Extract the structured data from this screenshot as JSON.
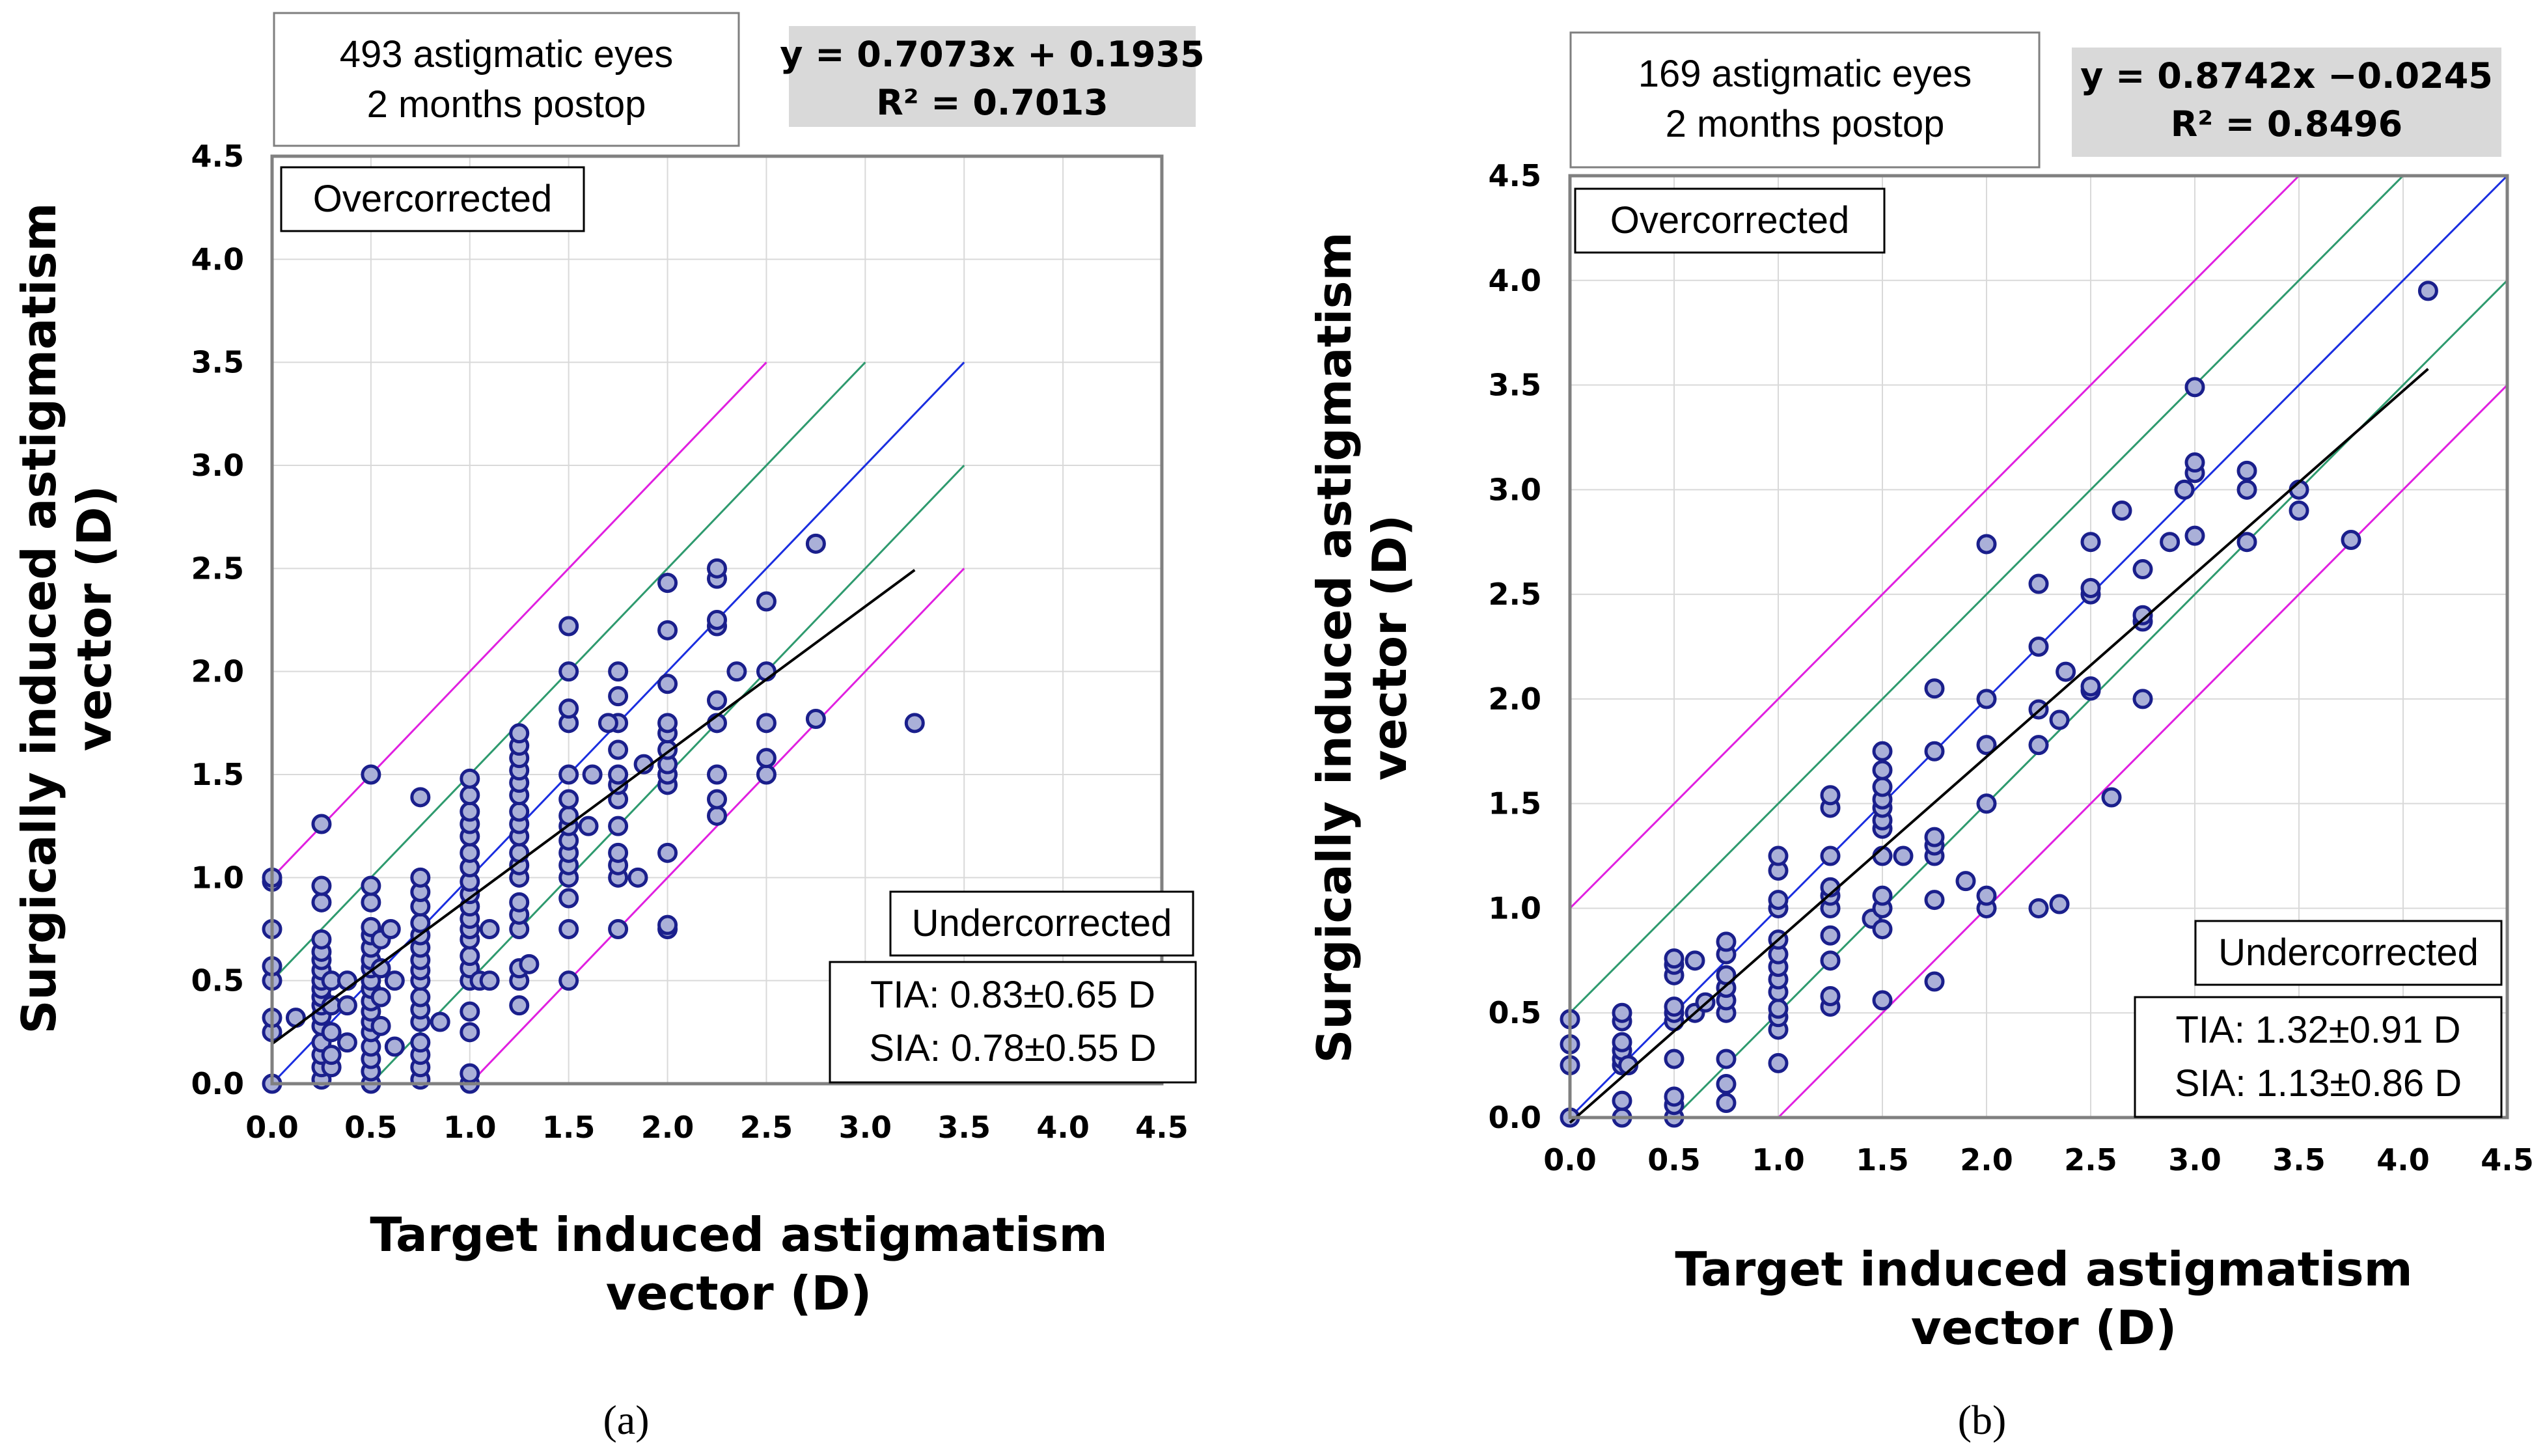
{
  "chart_data": [
    {
      "type": "scatter",
      "panel_label": "(a)",
      "info_lines": [
        "493 astigmatic eyes",
        "2 months postop"
      ],
      "equation": "y = 0.7073x + 0.1935",
      "r_squared_text": "R² = 0.7013",
      "overcorrected_label": "Overcorrected",
      "undercorrected_label": "Undercorrected",
      "stats_lines": [
        "TIA: 0.83±0.65 D",
        "SIA: 0.78±0.55 D"
      ],
      "xlabel": [
        "Target induced astigmatism",
        "vector (D)"
      ],
      "ylabel": [
        "Surgically induced astigmatism",
        "vector (D)"
      ],
      "xlim": [
        0,
        4.5
      ],
      "ylim": [
        0,
        4.5
      ],
      "x_ticks": [
        "0.0",
        "0.5",
        "1.0",
        "1.5",
        "2.0",
        "2.5",
        "3.0",
        "3.5",
        "4.0",
        "4.5"
      ],
      "y_ticks": [
        "0.0",
        "0.5",
        "1.0",
        "1.5",
        "2.0",
        "2.5",
        "3.0",
        "3.5",
        "4.0",
        "4.5"
      ],
      "grid": true,
      "trendline": {
        "slope": 0.7073,
        "intercept": 0.1935,
        "x_range": [
          0,
          3.25
        ],
        "color": "#000000"
      },
      "reference_lines": [
        {
          "offset": 1.0,
          "x_range": [
            0,
            2.5
          ],
          "color": "#e020e0"
        },
        {
          "offset": 0.5,
          "x_range": [
            0,
            3.0
          ],
          "color": "#2e9a6e"
        },
        {
          "offset": 0.0,
          "x_range": [
            0,
            3.5
          ],
          "color": "#1a2ee0"
        },
        {
          "offset": -0.5,
          "x_range": [
            0.5,
            3.5
          ],
          "color": "#2e9a6e"
        },
        {
          "offset": -1.0,
          "x_range": [
            1.0,
            3.5
          ],
          "color": "#e020e0"
        }
      ],
      "points": [
        [
          0,
          0
        ],
        [
          0,
          0.25
        ],
        [
          0,
          0.32
        ],
        [
          0,
          0.5
        ],
        [
          0,
          0.57
        ],
        [
          0,
          0.75
        ],
        [
          0,
          0.98
        ],
        [
          0,
          1.0
        ],
        [
          0.12,
          0.32
        ],
        [
          0.25,
          0.02
        ],
        [
          0.25,
          0.08
        ],
        [
          0.25,
          0.14
        ],
        [
          0.25,
          0.2
        ],
        [
          0.25,
          0.28
        ],
        [
          0.25,
          0.33
        ],
        [
          0.25,
          0.38
        ],
        [
          0.25,
          0.42
        ],
        [
          0.25,
          0.46
        ],
        [
          0.25,
          0.5
        ],
        [
          0.25,
          0.55
        ],
        [
          0.25,
          0.6
        ],
        [
          0.25,
          0.64
        ],
        [
          0.25,
          0.7
        ],
        [
          0.25,
          0.88
        ],
        [
          0.25,
          0.96
        ],
        [
          0.25,
          1.26
        ],
        [
          0.3,
          0.08
        ],
        [
          0.3,
          0.14
        ],
        [
          0.3,
          0.25
        ],
        [
          0.3,
          0.38
        ],
        [
          0.3,
          0.5
        ],
        [
          0.38,
          0.2
        ],
        [
          0.38,
          0.38
        ],
        [
          0.38,
          0.5
        ],
        [
          0.5,
          0
        ],
        [
          0.5,
          0.06
        ],
        [
          0.5,
          0.12
        ],
        [
          0.5,
          0.18
        ],
        [
          0.5,
          0.25
        ],
        [
          0.5,
          0.3
        ],
        [
          0.5,
          0.35
        ],
        [
          0.5,
          0.4
        ],
        [
          0.5,
          0.46
        ],
        [
          0.5,
          0.5
        ],
        [
          0.5,
          0.56
        ],
        [
          0.5,
          0.6
        ],
        [
          0.5,
          0.66
        ],
        [
          0.5,
          0.72
        ],
        [
          0.5,
          0.76
        ],
        [
          0.5,
          0.88
        ],
        [
          0.5,
          0.96
        ],
        [
          0.5,
          1.5
        ],
        [
          0.55,
          0.28
        ],
        [
          0.55,
          0.42
        ],
        [
          0.55,
          0.56
        ],
        [
          0.55,
          0.7
        ],
        [
          0.6,
          0.75
        ],
        [
          0.62,
          0.5
        ],
        [
          0.62,
          0.18
        ],
        [
          0.75,
          0.02
        ],
        [
          0.75,
          0.08
        ],
        [
          0.75,
          0.14
        ],
        [
          0.75,
          0.2
        ],
        [
          0.75,
          0.3
        ],
        [
          0.75,
          0.36
        ],
        [
          0.75,
          0.42
        ],
        [
          0.75,
          0.5
        ],
        [
          0.75,
          0.55
        ],
        [
          0.75,
          0.6
        ],
        [
          0.75,
          0.66
        ],
        [
          0.75,
          0.72
        ],
        [
          0.75,
          0.78
        ],
        [
          0.75,
          0.86
        ],
        [
          0.75,
          0.93
        ],
        [
          0.75,
          1.0
        ],
        [
          0.75,
          1.39
        ],
        [
          0.85,
          0.3
        ],
        [
          1.0,
          0
        ],
        [
          1.0,
          0.05
        ],
        [
          1.0,
          0.25
        ],
        [
          1.0,
          0.35
        ],
        [
          1.0,
          0.5
        ],
        [
          1.0,
          0.56
        ],
        [
          1.0,
          0.62
        ],
        [
          1.0,
          0.7
        ],
        [
          1.0,
          0.75
        ],
        [
          1.0,
          0.8
        ],
        [
          1.0,
          0.86
        ],
        [
          1.0,
          0.92
        ],
        [
          1.0,
          0.98
        ],
        [
          1.0,
          1.05
        ],
        [
          1.0,
          1.12
        ],
        [
          1.0,
          1.2
        ],
        [
          1.0,
          1.26
        ],
        [
          1.0,
          1.32
        ],
        [
          1.0,
          1.4
        ],
        [
          1.0,
          1.48
        ],
        [
          1.05,
          0.5
        ],
        [
          1.1,
          0.5
        ],
        [
          1.1,
          0.75
        ],
        [
          1.25,
          0.38
        ],
        [
          1.25,
          0.5
        ],
        [
          1.25,
          0.56
        ],
        [
          1.25,
          0.75
        ],
        [
          1.25,
          0.82
        ],
        [
          1.25,
          0.88
        ],
        [
          1.25,
          1.0
        ],
        [
          1.25,
          1.06
        ],
        [
          1.25,
          1.12
        ],
        [
          1.25,
          1.2
        ],
        [
          1.25,
          1.26
        ],
        [
          1.25,
          1.32
        ],
        [
          1.25,
          1.4
        ],
        [
          1.25,
          1.46
        ],
        [
          1.25,
          1.52
        ],
        [
          1.25,
          1.58
        ],
        [
          1.25,
          1.64
        ],
        [
          1.25,
          1.7
        ],
        [
          1.3,
          0.58
        ],
        [
          1.5,
          0.5
        ],
        [
          1.5,
          0.75
        ],
        [
          1.5,
          0.9
        ],
        [
          1.5,
          1.0
        ],
        [
          1.5,
          1.06
        ],
        [
          1.5,
          1.12
        ],
        [
          1.5,
          1.18
        ],
        [
          1.5,
          1.25
        ],
        [
          1.5,
          1.3
        ],
        [
          1.5,
          1.38
        ],
        [
          1.5,
          1.5
        ],
        [
          1.5,
          1.75
        ],
        [
          1.5,
          1.82
        ],
        [
          1.5,
          2.0
        ],
        [
          1.5,
          2.22
        ],
        [
          1.6,
          1.25
        ],
        [
          1.62,
          1.5
        ],
        [
          1.75,
          0.75
        ],
        [
          1.75,
          1.0
        ],
        [
          1.75,
          1.06
        ],
        [
          1.75,
          1.12
        ],
        [
          1.75,
          1.25
        ],
        [
          1.75,
          1.38
        ],
        [
          1.75,
          1.45
        ],
        [
          1.75,
          1.5
        ],
        [
          1.75,
          1.62
        ],
        [
          1.75,
          1.75
        ],
        [
          1.75,
          1.88
        ],
        [
          1.75,
          2.0
        ],
        [
          1.7,
          1.75
        ],
        [
          1.85,
          1.0
        ],
        [
          1.88,
          1.55
        ],
        [
          2.0,
          0.75
        ],
        [
          2.0,
          0.77
        ],
        [
          2.0,
          1.12
        ],
        [
          2.0,
          1.45
        ],
        [
          2.0,
          1.5
        ],
        [
          2.0,
          1.55
        ],
        [
          2.0,
          1.62
        ],
        [
          2.0,
          1.7
        ],
        [
          2.0,
          1.75
        ],
        [
          2.0,
          1.94
        ],
        [
          2.0,
          2.2
        ],
        [
          2.0,
          2.43
        ],
        [
          2.25,
          1.3
        ],
        [
          2.25,
          1.38
        ],
        [
          2.25,
          1.5
        ],
        [
          2.25,
          1.75
        ],
        [
          2.25,
          1.86
        ],
        [
          2.25,
          2.22
        ],
        [
          2.25,
          2.25
        ],
        [
          2.25,
          2.45
        ],
        [
          2.25,
          2.5
        ],
        [
          2.35,
          2.0
        ],
        [
          2.5,
          1.5
        ],
        [
          2.5,
          1.58
        ],
        [
          2.5,
          1.75
        ],
        [
          2.5,
          2.0
        ],
        [
          2.5,
          2.34
        ],
        [
          2.75,
          1.77
        ],
        [
          2.75,
          2.62
        ],
        [
          3.25,
          1.75
        ]
      ]
    },
    {
      "type": "scatter",
      "panel_label": "(b)",
      "info_lines": [
        "169 astigmatic eyes",
        "2 months postop"
      ],
      "equation": "y = 0.8742x −0.0245",
      "r_squared_text": "R² = 0.8496",
      "overcorrected_label": "Overcorrected",
      "undercorrected_label": "Undercorrected",
      "stats_lines": [
        "TIA: 1.32±0.91 D",
        "SIA: 1.13±0.86 D"
      ],
      "xlabel": [
        "Target induced astigmatism",
        "vector (D)"
      ],
      "ylabel": [
        "Surgically induced astigmatism",
        "vector (D)"
      ],
      "xlim": [
        0,
        4.5
      ],
      "ylim": [
        0,
        4.5
      ],
      "x_ticks": [
        "0.0",
        "0.5",
        "1.0",
        "1.5",
        "2.0",
        "2.5",
        "3.0",
        "3.5",
        "4.0",
        "4.5"
      ],
      "y_ticks": [
        "0.0",
        "0.5",
        "1.0",
        "1.5",
        "2.0",
        "2.5",
        "3.0",
        "3.5",
        "4.0",
        "4.5"
      ],
      "grid": true,
      "trendline": {
        "slope": 0.8742,
        "intercept": -0.0245,
        "x_range": [
          0,
          4.12
        ],
        "color": "#000000"
      },
      "reference_lines": [
        {
          "offset": 1.0,
          "x_range": [
            0,
            3.5
          ],
          "color": "#e020e0"
        },
        {
          "offset": 0.5,
          "x_range": [
            0,
            4.0
          ],
          "color": "#2e9a6e"
        },
        {
          "offset": 0.0,
          "x_range": [
            0,
            4.5
          ],
          "color": "#1a2ee0"
        },
        {
          "offset": -0.5,
          "x_range": [
            0.5,
            4.5
          ],
          "color": "#2e9a6e"
        },
        {
          "offset": -1.0,
          "x_range": [
            1.0,
            4.5
          ],
          "color": "#e020e0"
        }
      ],
      "points": [
        [
          0,
          0
        ],
        [
          0,
          0.25
        ],
        [
          0,
          0.35
        ],
        [
          0,
          0.47
        ],
        [
          0.25,
          0
        ],
        [
          0.25,
          0.08
        ],
        [
          0.25,
          0.25
        ],
        [
          0.25,
          0.28
        ],
        [
          0.25,
          0.32
        ],
        [
          0.25,
          0.36
        ],
        [
          0.25,
          0.46
        ],
        [
          0.25,
          0.5
        ],
        [
          0.28,
          0.25
        ],
        [
          0.5,
          0
        ],
        [
          0.5,
          0.06
        ],
        [
          0.5,
          0.1
        ],
        [
          0.5,
          0.28
        ],
        [
          0.5,
          0.46
        ],
        [
          0.5,
          0.5
        ],
        [
          0.5,
          0.53
        ],
        [
          0.5,
          0.68
        ],
        [
          0.5,
          0.73
        ],
        [
          0.5,
          0.76
        ],
        [
          0.6,
          0.5
        ],
        [
          0.6,
          0.75
        ],
        [
          0.65,
          0.55
        ],
        [
          0.75,
          0.07
        ],
        [
          0.75,
          0.16
        ],
        [
          0.75,
          0.28
        ],
        [
          0.75,
          0.5
        ],
        [
          0.75,
          0.56
        ],
        [
          0.75,
          0.62
        ],
        [
          0.75,
          0.68
        ],
        [
          0.75,
          0.78
        ],
        [
          0.75,
          0.84
        ],
        [
          1.0,
          0.26
        ],
        [
          1.0,
          0.42
        ],
        [
          1.0,
          0.48
        ],
        [
          1.0,
          0.52
        ],
        [
          1.0,
          0.6
        ],
        [
          1.0,
          0.66
        ],
        [
          1.0,
          0.72
        ],
        [
          1.0,
          0.78
        ],
        [
          1.0,
          0.85
        ],
        [
          1.0,
          1.0
        ],
        [
          1.0,
          1.04
        ],
        [
          1.0,
          1.18
        ],
        [
          1.0,
          1.25
        ],
        [
          1.25,
          0.53
        ],
        [
          1.25,
          0.58
        ],
        [
          1.25,
          0.75
        ],
        [
          1.25,
          0.87
        ],
        [
          1.25,
          1.0
        ],
        [
          1.25,
          1.06
        ],
        [
          1.25,
          1.1
        ],
        [
          1.25,
          1.25
        ],
        [
          1.25,
          1.48
        ],
        [
          1.25,
          1.54
        ],
        [
          1.45,
          0.95
        ],
        [
          1.5,
          0.56
        ],
        [
          1.5,
          0.9
        ],
        [
          1.5,
          1.0
        ],
        [
          1.5,
          1.06
        ],
        [
          1.5,
          1.25
        ],
        [
          1.5,
          1.38
        ],
        [
          1.5,
          1.42
        ],
        [
          1.5,
          1.48
        ],
        [
          1.5,
          1.52
        ],
        [
          1.5,
          1.58
        ],
        [
          1.5,
          1.66
        ],
        [
          1.5,
          1.75
        ],
        [
          1.6,
          1.25
        ],
        [
          1.75,
          0.65
        ],
        [
          1.75,
          1.04
        ],
        [
          1.75,
          1.25
        ],
        [
          1.75,
          1.3
        ],
        [
          1.75,
          1.34
        ],
        [
          1.75,
          1.75
        ],
        [
          1.75,
          2.05
        ],
        [
          1.9,
          1.13
        ],
        [
          2.0,
          1.0
        ],
        [
          2.0,
          1.06
        ],
        [
          2.0,
          1.5
        ],
        [
          2.0,
          1.78
        ],
        [
          2.0,
          2.0
        ],
        [
          2.0,
          2.74
        ],
        [
          2.25,
          1.0
        ],
        [
          2.25,
          1.78
        ],
        [
          2.25,
          1.95
        ],
        [
          2.25,
          2.25
        ],
        [
          2.25,
          2.55
        ],
        [
          2.35,
          1.02
        ],
        [
          2.35,
          1.9
        ],
        [
          2.38,
          2.13
        ],
        [
          2.5,
          2.04
        ],
        [
          2.5,
          2.06
        ],
        [
          2.5,
          2.5
        ],
        [
          2.5,
          2.53
        ],
        [
          2.5,
          2.75
        ],
        [
          2.6,
          1.53
        ],
        [
          2.65,
          2.9
        ],
        [
          2.75,
          2.0
        ],
        [
          2.75,
          2.37
        ],
        [
          2.75,
          2.4
        ],
        [
          2.75,
          2.62
        ],
        [
          2.88,
          2.75
        ],
        [
          2.95,
          3.0
        ],
        [
          3.0,
          2.78
        ],
        [
          3.0,
          3.08
        ],
        [
          3.0,
          3.13
        ],
        [
          3.0,
          3.49
        ],
        [
          3.25,
          2.75
        ],
        [
          3.25,
          3.0
        ],
        [
          3.25,
          3.09
        ],
        [
          3.5,
          2.9
        ],
        [
          3.5,
          3.0
        ],
        [
          3.75,
          2.76
        ],
        [
          4.12,
          3.95
        ]
      ]
    }
  ]
}
